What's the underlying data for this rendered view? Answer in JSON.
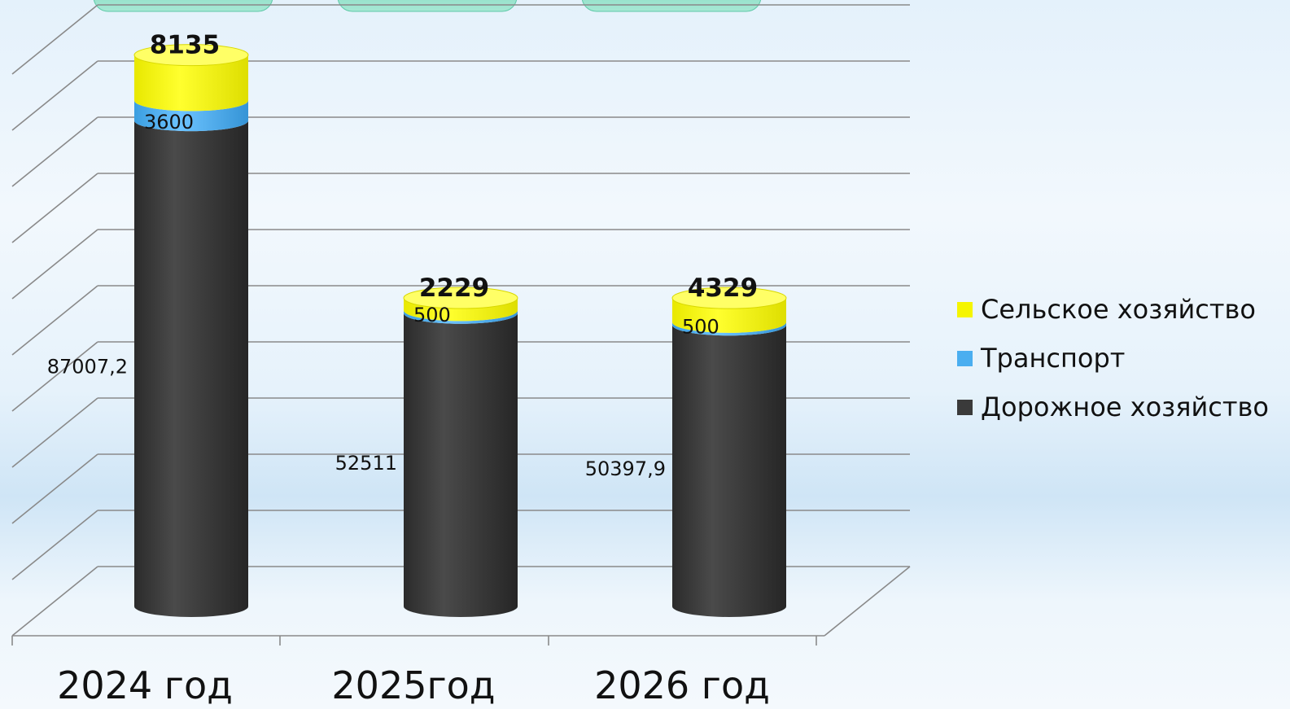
{
  "chart_data": {
    "type": "bar",
    "categories": [
      "2024 год",
      "2025год",
      "2026 год"
    ],
    "series": [
      {
        "name": "Дорожное хозяйство",
        "values": [
          87007.2,
          52511,
          50397.9
        ],
        "labels": [
          "87007,2",
          "52511",
          "50397,9"
        ],
        "color": "#3a3a3a"
      },
      {
        "name": "Транспорт",
        "values": [
          3600,
          500,
          500
        ],
        "labels": [
          "3600",
          "500",
          "500"
        ],
        "color": "#4aaef0"
      },
      {
        "name": "Сельское хозяйство",
        "values": [
          8135,
          2229,
          4329
        ],
        "labels": [
          "8135",
          "2229",
          "4329"
        ],
        "color": "#f5f500"
      }
    ],
    "stacked": true,
    "style": "3d-cylinder",
    "legend_position": "right",
    "grid": true
  }
}
